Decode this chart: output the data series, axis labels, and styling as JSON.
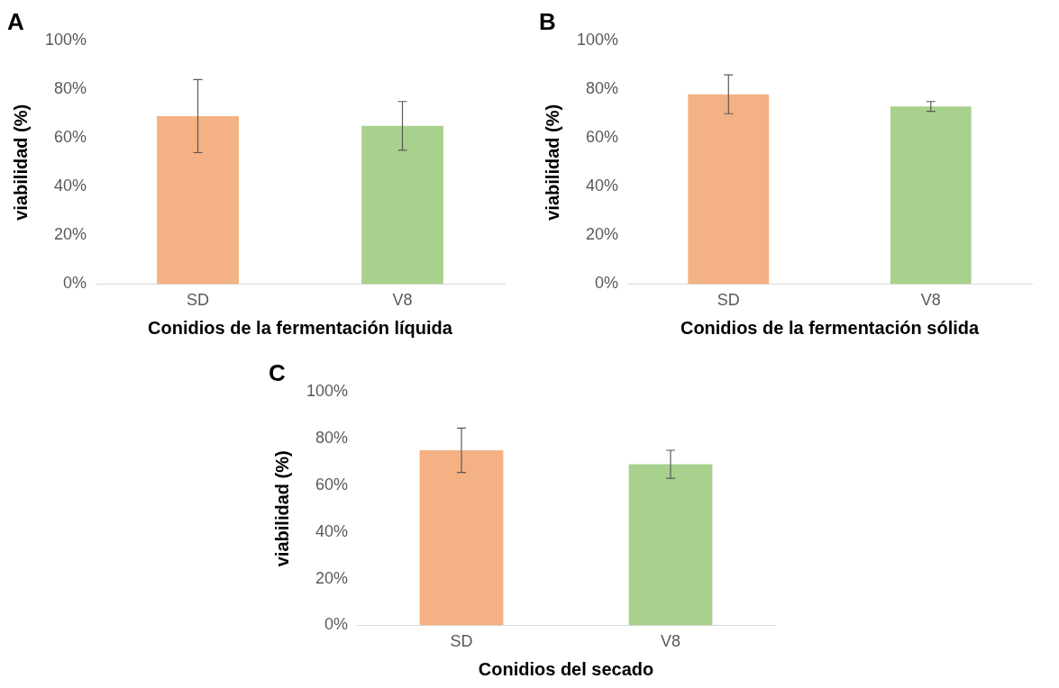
{
  "chart_data": [
    {
      "type": "bar",
      "title": "A",
      "xlabel": "Conidios de la fermentación líquida",
      "ylabel": "viabilidad (%)",
      "categories": [
        "SD",
        "V8"
      ],
      "values": [
        69,
        65
      ],
      "colors": [
        "#f4b183",
        "#a9d18e"
      ],
      "errors": [
        15,
        10
      ],
      "ylim": [
        0,
        100
      ],
      "yticks": [
        {
          "value": 0,
          "label": "0%"
        },
        {
          "value": 20,
          "label": "20%"
        },
        {
          "value": 40,
          "label": "40%"
        },
        {
          "value": 60,
          "label": "60%"
        },
        {
          "value": 80,
          "label": "80%"
        },
        {
          "value": 100,
          "label": "100%"
        }
      ],
      "grid": false,
      "legend": false
    },
    {
      "type": "bar",
      "title": "B",
      "xlabel": "Conidios de la fermentación sólida",
      "ylabel": "viabilidad (%)",
      "categories": [
        "SD",
        "V8"
      ],
      "values": [
        78,
        73
      ],
      "colors": [
        "#f4b183",
        "#a9d18e"
      ],
      "errors": [
        8,
        2
      ],
      "ylim": [
        0,
        100
      ],
      "yticks": [
        {
          "value": 0,
          "label": "0%"
        },
        {
          "value": 20,
          "label": "20%"
        },
        {
          "value": 40,
          "label": "40%"
        },
        {
          "value": 60,
          "label": "60%"
        },
        {
          "value": 80,
          "label": "80%"
        },
        {
          "value": 100,
          "label": "100%"
        }
      ],
      "grid": false,
      "legend": false
    },
    {
      "type": "bar",
      "title": "C",
      "xlabel": "Conidios del secado",
      "ylabel": "viabilidad (%)",
      "categories": [
        "SD",
        "V8"
      ],
      "values": [
        75,
        69
      ],
      "colors": [
        "#f4b183",
        "#a9d18e"
      ],
      "errors": [
        9.5,
        6
      ],
      "ylim": [
        0,
        100
      ],
      "yticks": [
        {
          "value": 0,
          "label": "0%"
        },
        {
          "value": 20,
          "label": "20%"
        },
        {
          "value": 40,
          "label": "40%"
        },
        {
          "value": 60,
          "label": "60%"
        },
        {
          "value": 80,
          "label": "80%"
        },
        {
          "value": 100,
          "label": "100%"
        }
      ],
      "grid": false,
      "legend": false
    }
  ]
}
